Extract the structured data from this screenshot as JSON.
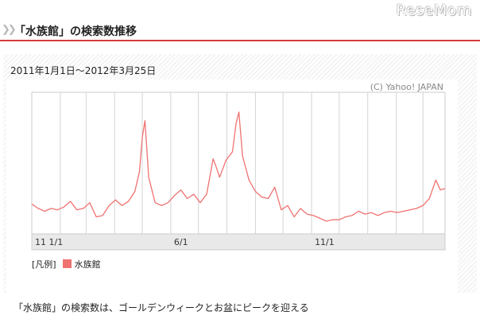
{
  "brand": "ReseMom",
  "header": {
    "title": "「水族館」の検索数推移"
  },
  "chart_data": {
    "type": "line",
    "title": "",
    "range_label": "2011年1月1日～2012年3月25日",
    "credit": "(C) Yahoo! JAPAN",
    "xlabel": "",
    "ylabel": "",
    "x_start": "2011-01-01",
    "x_end": "2012-03-25",
    "x_ticks": [
      {
        "label": "11 1/1",
        "date": "2011-01-01"
      },
      {
        "label": "6/1",
        "date": "2011-06-01"
      },
      {
        "label": "11/1",
        "date": "2011-11-01"
      }
    ],
    "ylim": [
      0,
      100
    ],
    "grid": true,
    "legend_title": "[凡例]",
    "series": [
      {
        "name": "水族館",
        "color": "#ef7371",
        "points": [
          [
            "2011-01-01",
            21
          ],
          [
            "2011-01-08",
            18
          ],
          [
            "2011-01-15",
            16
          ],
          [
            "2011-01-22",
            18
          ],
          [
            "2011-01-29",
            17
          ],
          [
            "2011-02-05",
            19
          ],
          [
            "2011-02-12",
            23
          ],
          [
            "2011-02-19",
            17
          ],
          [
            "2011-02-26",
            18
          ],
          [
            "2011-03-05",
            22
          ],
          [
            "2011-03-12",
            12
          ],
          [
            "2011-03-19",
            13
          ],
          [
            "2011-03-26",
            20
          ],
          [
            "2011-04-02",
            24
          ],
          [
            "2011-04-09",
            20
          ],
          [
            "2011-04-16",
            23
          ],
          [
            "2011-04-23",
            30
          ],
          [
            "2011-04-28",
            44
          ],
          [
            "2011-05-01",
            68
          ],
          [
            "2011-05-04",
            80
          ],
          [
            "2011-05-08",
            40
          ],
          [
            "2011-05-15",
            22
          ],
          [
            "2011-05-22",
            20
          ],
          [
            "2011-05-29",
            22
          ],
          [
            "2011-06-05",
            27
          ],
          [
            "2011-06-12",
            31
          ],
          [
            "2011-06-19",
            25
          ],
          [
            "2011-06-26",
            28
          ],
          [
            "2011-07-03",
            22
          ],
          [
            "2011-07-10",
            28
          ],
          [
            "2011-07-17",
            53
          ],
          [
            "2011-07-20",
            48
          ],
          [
            "2011-07-24",
            40
          ],
          [
            "2011-07-31",
            52
          ],
          [
            "2011-08-07",
            58
          ],
          [
            "2011-08-11",
            78
          ],
          [
            "2011-08-14",
            86
          ],
          [
            "2011-08-18",
            55
          ],
          [
            "2011-08-25",
            38
          ],
          [
            "2011-09-01",
            30
          ],
          [
            "2011-09-08",
            26
          ],
          [
            "2011-09-15",
            25
          ],
          [
            "2011-09-22",
            33
          ],
          [
            "2011-09-29",
            17
          ],
          [
            "2011-10-06",
            20
          ],
          [
            "2011-10-13",
            12
          ],
          [
            "2011-10-20",
            18
          ],
          [
            "2011-10-27",
            14
          ],
          [
            "2011-11-03",
            13
          ],
          [
            "2011-11-10",
            11
          ],
          [
            "2011-11-17",
            9
          ],
          [
            "2011-11-24",
            10
          ],
          [
            "2011-12-01",
            10
          ],
          [
            "2011-12-08",
            12
          ],
          [
            "2011-12-15",
            13
          ],
          [
            "2011-12-22",
            16
          ],
          [
            "2011-12-29",
            14
          ],
          [
            "2012-01-05",
            15
          ],
          [
            "2012-01-12",
            13
          ],
          [
            "2012-01-19",
            15
          ],
          [
            "2012-01-26",
            16
          ],
          [
            "2012-02-02",
            15
          ],
          [
            "2012-02-09",
            16
          ],
          [
            "2012-02-16",
            17
          ],
          [
            "2012-02-23",
            18
          ],
          [
            "2012-03-01",
            20
          ],
          [
            "2012-03-08",
            25
          ],
          [
            "2012-03-15",
            38
          ],
          [
            "2012-03-20",
            31
          ],
          [
            "2012-03-25",
            32
          ]
        ]
      }
    ]
  },
  "caption": "「水族館」の検索数は、ゴールデンウィークとお盆にピークを迎える"
}
